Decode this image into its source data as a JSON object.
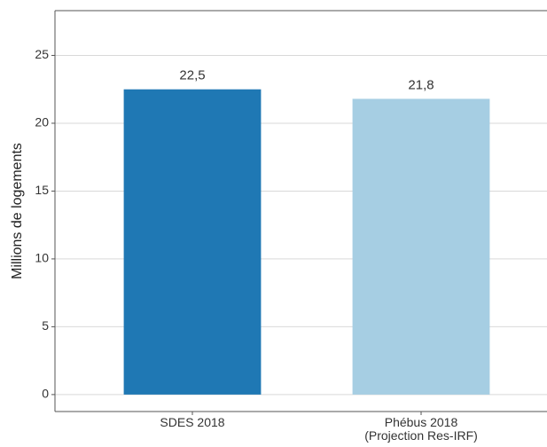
{
  "chart_data": {
    "type": "bar",
    "y_label": "Millions de logements",
    "categories": [
      "SDES 2018",
      "Phébus 2018\n(Projection Res-IRF)"
    ],
    "values": [
      22.5,
      21.8
    ],
    "value_labels": [
      "22,5",
      "21,8"
    ],
    "colors": [
      "#1f78b4",
      "#a6cee3"
    ],
    "ylim": [
      -1.25,
      28.3
    ],
    "yticks": [
      0,
      5,
      10,
      15,
      20,
      25
    ],
    "grid": true
  }
}
